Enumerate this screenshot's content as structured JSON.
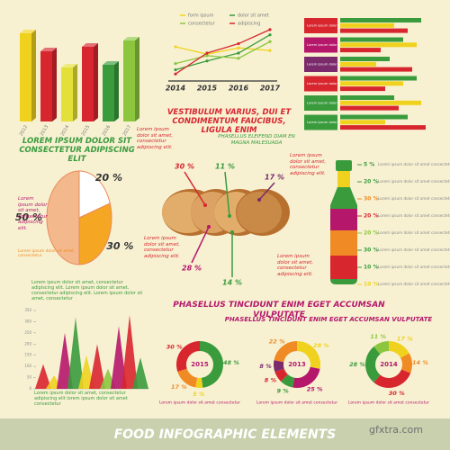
{
  "footer": {
    "title": "FOOD INFOGRAPHIC ELEMENTS",
    "watermark": "gfxtra.com"
  },
  "texts": {
    "heading_vestibulum": "VESTIBULUM VARIUS, DUI ET CONDIMENTUM FAUCIBUS, LIGULA ENIM",
    "heading_lorem": "LOREM IPSUM DOLOR SIT CONSECTETUR ADIPISCING ELIT",
    "heading_phasellus_eleifend": "PHASELLUS ELEIFEND DIAM EN MAGNA MALESUADA",
    "heading_phasellus_1": "PHASELLUS TINCIDUNT ENIM EGET ACCUMSAN VULPUTATE",
    "heading_phasellus_2": "PHASELLUS TINCIDUNT ENIM EGET ACCUMSAN VULPUTATE",
    "notes": [
      "Lorem ipsum dolor sit amet, consectetur adipiscing elit.",
      "Lorem ipsum dolor sit amet, consectetur adipiscing elit.",
      "Lorem ipsum dolor sit amet, consectetur adipiscing elit.",
      "Lorem ipsum dolor sit amet, consectetur adipiscing elit.",
      "Lorem ipsum dolor sit amet, consectetur adipiscing elit."
    ],
    "egg_note": "Lorem ipsum dolor sit amet consectetur",
    "paragraph_top": "Lorem ipsum dolor sit amet, consectetur adipiscing elit. Lorem ipsum dolor sit amet, consectetur adipiscing elit. Lorem ipsum dolor sit amet, consectetur",
    "paragraph_bottom": "Lorem ipsum dolor sit amet, consectetur adipiscing elit lorem ipsum dolor sit amet consectetur"
  },
  "chart_data": [
    {
      "type": "bar",
      "categories": [
        "2012",
        "2013",
        "2014",
        "2015",
        "2016",
        "2017"
      ],
      "values": [
        98,
        78,
        60,
        83,
        63,
        90
      ],
      "colors": [
        "#f0d21e",
        "#d8262f",
        "#e4e03a",
        "#d8262f",
        "#3a9b3d",
        "#8cc63f"
      ],
      "ylim": [
        0,
        100
      ]
    },
    {
      "type": "line",
      "categories": [
        "2014",
        "2015",
        "2016",
        "2017"
      ],
      "ylim": [
        0,
        100
      ],
      "series": [
        {
          "name": "form ipsum",
          "color": "#f0d21e",
          "values": [
            62,
            48,
            60,
            55
          ]
        },
        {
          "name": "dolor sit amet",
          "color": "#3a9b3d",
          "values": [
            18,
            35,
            50,
            85
          ]
        },
        {
          "name": "consectetur",
          "color": "#8cc63f",
          "values": [
            30,
            45,
            40,
            72
          ]
        },
        {
          "name": "adipiscing",
          "color": "#d8262f",
          "values": [
            10,
            50,
            68,
            95
          ]
        }
      ]
    },
    {
      "type": "bar",
      "orientation": "horizontal",
      "xlim": [
        0,
        100
      ],
      "categories": [
        "Lorem ipsum dolor sit",
        "Lorem ipsum dolor sit",
        "Lorem ipsum dolor sit",
        "Lorem ipsum dolor sit",
        "Lorem ipsum dolor sit",
        "Lorem ipsum dolor sit"
      ],
      "category_colors": [
        "#d8262f",
        "#b5176b",
        "#7b2a6b",
        "#d8262f",
        "#3a9b3d",
        "#3a9b3d"
      ],
      "series": [
        {
          "color": "#3a9b3d",
          "values": [
            90,
            70,
            55,
            85,
            60,
            75
          ]
        },
        {
          "color": "#f0d21e",
          "values": [
            60,
            85,
            40,
            70,
            90,
            50
          ]
        },
        {
          "color": "#d8262f",
          "values": [
            75,
            45,
            80,
            50,
            65,
            95
          ]
        }
      ]
    },
    {
      "type": "pie",
      "values": [
        50,
        20,
        30
      ],
      "value_labels": [
        "50 %",
        "20 %",
        "30 %"
      ],
      "colors": [
        "#f3b98c",
        "#ffffff",
        "#f5a623"
      ]
    },
    {
      "type": "callout",
      "values": [
        30,
        11,
        17,
        28,
        14
      ],
      "value_labels": [
        "30 %",
        "11 %",
        "17 %",
        "28 %",
        "14 %"
      ],
      "colors": [
        "#d8262f",
        "#3a9b3d",
        "#7b2a6b",
        "#b5176b",
        "#3a9b3d"
      ]
    },
    {
      "type": "list",
      "values": [
        5,
        20,
        30,
        20,
        20,
        30,
        10,
        10
      ],
      "value_labels": [
        "5 %",
        "20 %",
        "30 %",
        "20 %",
        "20 %",
        "30 %",
        "10 %",
        "10 %"
      ],
      "categories": [
        "Lorem ipsum dolor sit amet consectetur",
        "Lorem ipsum dolor sit amet consectetur",
        "Lorem ipsum dolor sit amet consectetur",
        "Lorem ipsum dolor sit amet consectetur",
        "Lorem ipsum dolor sit amet consectetur",
        "Lorem ipsum dolor sit amet consectetur",
        "Lorem ipsum dolor sit amet consectetur",
        "Lorem ipsum dolor sit amet consectetur"
      ],
      "colors": [
        "#3a9b3d",
        "#3a9b3d",
        "#f08a24",
        "#d8262f",
        "#8cc63f",
        "#3a9b3d",
        "#3a9b3d",
        "#f0d21e"
      ]
    },
    {
      "type": "area",
      "values": [
        110,
        60,
        250,
        320,
        150,
        200,
        90,
        280,
        330,
        140
      ],
      "colors": [
        "#d8262f",
        "#f0d21e",
        "#b5176b",
        "#3a9b3d",
        "#f0d21e",
        "#d8262f",
        "#8cc63f",
        "#b5176b",
        "#d8262f",
        "#3a9b3d"
      ],
      "ylim": [
        0,
        350
      ],
      "yticks": [
        0,
        50,
        100,
        150,
        200,
        250,
        300,
        350
      ]
    },
    {
      "type": "donut",
      "title": "2015",
      "values": [
        48,
        5,
        17,
        30
      ],
      "value_labels": [
        "48 %",
        "5 %",
        "17 %",
        "30 %"
      ],
      "colors": [
        "#3a9b3d",
        "#f0d21e",
        "#f08a24",
        "#d8262f"
      ],
      "caption": "Lorem ipsum dolor sit amet consectetur"
    },
    {
      "type": "donut",
      "title": "2013",
      "values": [
        28,
        25,
        9,
        8,
        8,
        22
      ],
      "value_labels": [
        "28 %",
        "25 %",
        "9 %",
        "8 %",
        "8 %",
        "22 %"
      ],
      "colors": [
        "#f0d21e",
        "#b5176b",
        "#3a9b3d",
        "#d8262f",
        "#7b2a6b",
        "#f08a24"
      ],
      "caption": "Lorem ipsum dolor sit amet consectetur"
    },
    {
      "type": "donut",
      "title": "2014",
      "values": [
        17,
        14,
        30,
        28,
        11
      ],
      "value_labels": [
        "17 %",
        "14 %",
        "30 %",
        "28 %",
        "11 %"
      ],
      "colors": [
        "#f0d21e",
        "#f08a24",
        "#d8262f",
        "#3a9b3d",
        "#8cc63f"
      ],
      "caption": "Lorem ipsum dolor sit amet consectetur"
    }
  ]
}
